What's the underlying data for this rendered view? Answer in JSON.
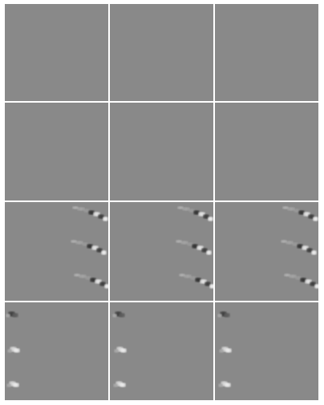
{
  "figure": {
    "rows": 4,
    "cols": 3,
    "background_color": "#ffffff",
    "tile_color": "#898989",
    "tiles": [
      {
        "row": 0,
        "col": 0,
        "features": "none"
      },
      {
        "row": 0,
        "col": 1,
        "features": "none"
      },
      {
        "row": 0,
        "col": 2,
        "features": "none"
      },
      {
        "row": 1,
        "col": 0,
        "features": "none"
      },
      {
        "row": 1,
        "col": 1,
        "features": "none"
      },
      {
        "row": 1,
        "col": 2,
        "features": "none"
      },
      {
        "row": 2,
        "col": 0,
        "features": "diagonal-streaks-right"
      },
      {
        "row": 2,
        "col": 1,
        "features": "diagonal-streaks-right"
      },
      {
        "row": 2,
        "col": 2,
        "features": "diagonal-streaks-right"
      },
      {
        "row": 3,
        "col": 0,
        "features": "small-spots-left"
      },
      {
        "row": 3,
        "col": 1,
        "features": "small-spots-left"
      },
      {
        "row": 3,
        "col": 2,
        "features": "small-spots-left"
      }
    ]
  }
}
